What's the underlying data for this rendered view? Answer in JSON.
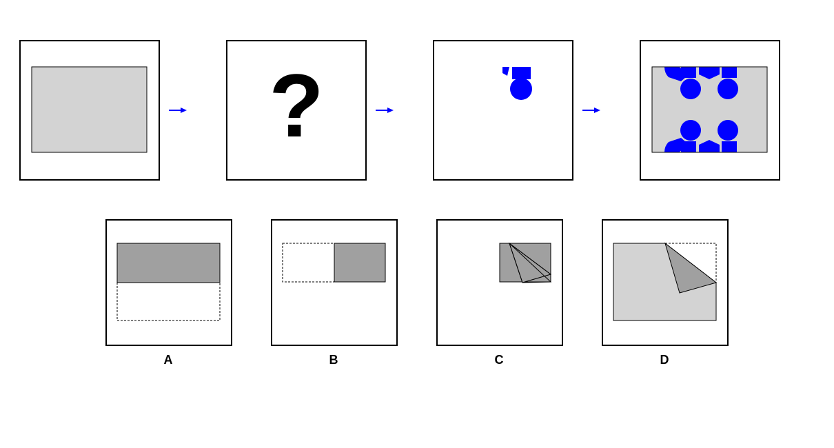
{
  "sequence": {
    "question_mark": "?"
  },
  "options": {
    "a": "A",
    "b": "B",
    "c": "C",
    "d": "D"
  },
  "colors": {
    "paper": "#d3d3d3",
    "folded_flap": "#a0a0a0",
    "hole": "#0000ff",
    "arrow": "#0000ff",
    "frame": "#000000",
    "background": "#ffffff"
  }
}
